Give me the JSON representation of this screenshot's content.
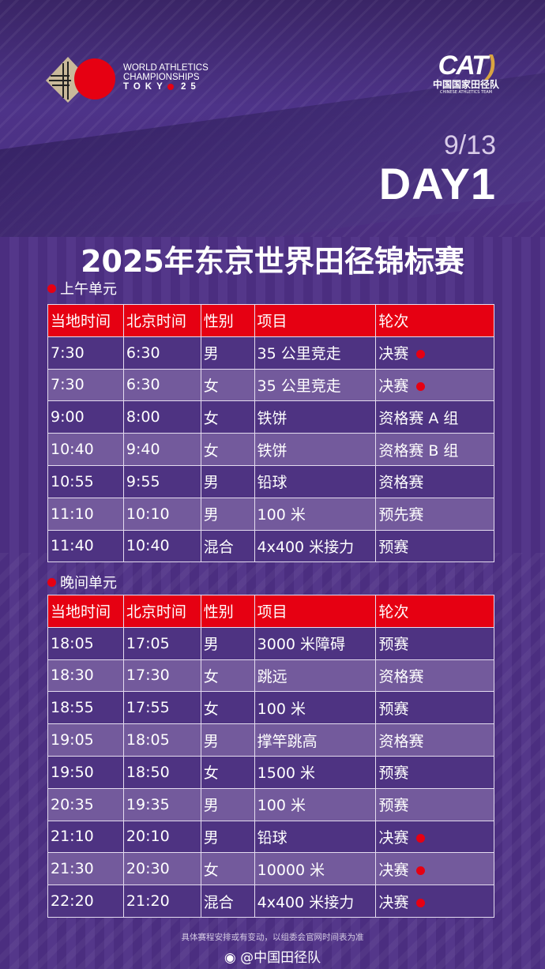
{
  "header": {
    "event_logo": {
      "line1": "WORLD ATHLETICS",
      "line2": "CHAMPIONSHIPS",
      "line3a": "TOKY",
      "line3b": "25"
    },
    "team_logo": {
      "mark_a": "CA",
      "mark_b": "T",
      "cn": "中国国家田径队",
      "en": "CHINESE ATHLETICS TEAM"
    },
    "date": "9/13",
    "day": "DAY1",
    "title": "2025年东京世界田径锦标赛"
  },
  "columns": [
    "当地时间",
    "北京时间",
    "性别",
    "项目",
    "轮次"
  ],
  "accent_color": "#e60012",
  "sections": [
    {
      "label": "上午单元",
      "rows": [
        {
          "local": "7:30",
          "beijing": "6:30",
          "gender": "男",
          "event": "35 公里竞走",
          "round": "决赛",
          "final": true
        },
        {
          "local": "7:30",
          "beijing": "6:30",
          "gender": "女",
          "event": "35 公里竞走",
          "round": "决赛",
          "final": true
        },
        {
          "local": "9:00",
          "beijing": "8:00",
          "gender": "女",
          "event": "铁饼",
          "round": "资格赛 A 组",
          "final": false
        },
        {
          "local": "10:40",
          "beijing": "9:40",
          "gender": "女",
          "event": "铁饼",
          "round": "资格赛 B 组",
          "final": false
        },
        {
          "local": "10:55",
          "beijing": "9:55",
          "gender": "男",
          "event": "铅球",
          "round": "资格赛",
          "final": false
        },
        {
          "local": "11:10",
          "beijing": "10:10",
          "gender": "男",
          "event": "100 米",
          "round": "预先赛",
          "final": false
        },
        {
          "local": "11:40",
          "beijing": "10:40",
          "gender": "混合",
          "event": "4x400 米接力",
          "round": "预赛",
          "final": false
        }
      ]
    },
    {
      "label": "晚间单元",
      "rows": [
        {
          "local": "18:05",
          "beijing": "17:05",
          "gender": "男",
          "event": "3000 米障碍",
          "round": "预赛",
          "final": false
        },
        {
          "local": "18:30",
          "beijing": "17:30",
          "gender": "女",
          "event": "跳远",
          "round": "资格赛",
          "final": false
        },
        {
          "local": "18:55",
          "beijing": "17:55",
          "gender": "女",
          "event": "100 米",
          "round": "预赛",
          "final": false
        },
        {
          "local": "19:05",
          "beijing": "18:05",
          "gender": "男",
          "event": "撑竿跳高",
          "round": "资格赛",
          "final": false
        },
        {
          "local": "19:50",
          "beijing": "18:50",
          "gender": "女",
          "event": "1500 米",
          "round": "预赛",
          "final": false
        },
        {
          "local": "20:35",
          "beijing": "19:35",
          "gender": "男",
          "event": "100 米",
          "round": "预赛",
          "final": false
        },
        {
          "local": "21:10",
          "beijing": "20:10",
          "gender": "男",
          "event": "铅球",
          "round": "决赛",
          "final": true
        },
        {
          "local": "21:30",
          "beijing": "20:30",
          "gender": "女",
          "event": "10000 米",
          "round": "决赛",
          "final": true
        },
        {
          "local": "22:20",
          "beijing": "21:20",
          "gender": "混合",
          "event": "4x400 米接力",
          "round": "决赛",
          "final": true
        }
      ]
    }
  ],
  "footer": {
    "note": "具体赛程安排或有变动，以组委会官网时间表为准",
    "weibo_icon": "weibo-icon",
    "weibo": "@中国田径队"
  }
}
